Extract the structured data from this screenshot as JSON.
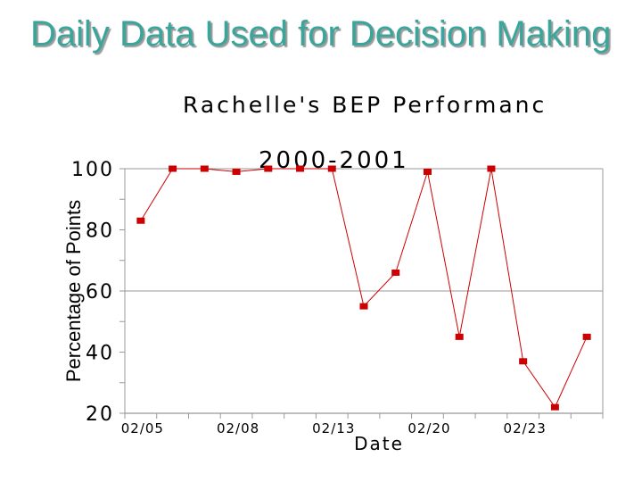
{
  "slide": {
    "title": "Daily Data Used for Decision Making"
  },
  "chart_data": {
    "type": "line",
    "title": "Rachelle's BEP Performanc",
    "subtitle": "2000-2001",
    "xlabel": "Date",
    "ylabel": "Percentage of Points",
    "ylim": [
      20,
      100
    ],
    "yticks": [
      20,
      40,
      60,
      80,
      100
    ],
    "gridlines_y": [
      60,
      100
    ],
    "x_tick_labels": [
      "02/05",
      "02/08",
      "02/13",
      "02/20",
      "02/23"
    ],
    "x_tick_label_index": [
      0,
      3,
      6,
      9,
      12
    ],
    "series": [
      {
        "name": "BEP Performance",
        "color": "#cc0000",
        "values": [
          83,
          100,
          100,
          99,
          100,
          100,
          100,
          55,
          66,
          99,
          45,
          100,
          37,
          22,
          45
        ]
      }
    ]
  }
}
